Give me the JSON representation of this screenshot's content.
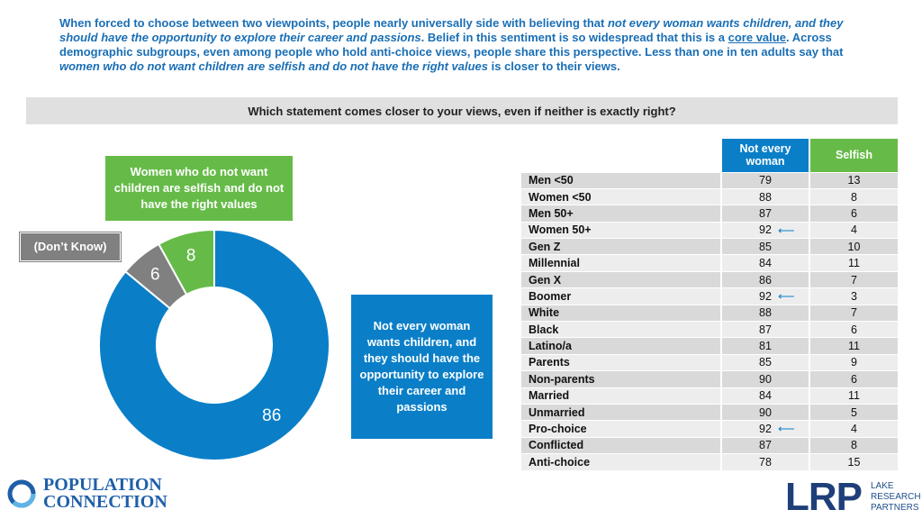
{
  "intro": {
    "part1": "When forced to choose between two viewpoints, people nearly universally side with believing that ",
    "italic1": "not every woman wants children, and they should have the opportunity to explore their career and passions",
    "part2": ". Belief in this sentiment is so widespread that this is a ",
    "underlined": "core value",
    "part3": ". Across demographic subgroups, even among people who hold anti-choice views, people share this perspective. Less than one in ten adults say that ",
    "italic2": "women who do not want children are selfish and do not have the right values",
    "part4": " is closer to their views."
  },
  "question": "Which statement comes closer to your views, even if neither is exactly right?",
  "callouts": {
    "selfish": "Women who do not want children are selfish and do not have the right values",
    "dont_know": "(Don’t Know)",
    "not_every": "Not every woman wants children, and they should have the opportunity to explore their career and passions"
  },
  "colors": {
    "blue": "#0a7fc8",
    "green": "#66bb48",
    "gray": "#808080"
  },
  "chart_data": [
    {
      "type": "pie",
      "title": "Which statement comes closer to your views, even if neither is exactly right?",
      "slices": [
        {
          "name": "Not every woman wants children, and they should have the opportunity to explore their career and passions",
          "value": 86,
          "color": "#0a7fc8"
        },
        {
          "name": "(Don’t Know)",
          "value": 6,
          "color": "#808080"
        },
        {
          "name": "Women who do not want children are selfish and do not have the right values",
          "value": 8,
          "color": "#66bb48"
        }
      ]
    },
    {
      "type": "table",
      "columns": [
        "",
        "Not every woman",
        "Selfish"
      ],
      "rows": [
        {
          "group": "Men <50",
          "not_every": 79,
          "selfish": 13,
          "arrow": false
        },
        {
          "group": "Women <50",
          "not_every": 88,
          "selfish": 8,
          "arrow": false
        },
        {
          "group": "Men 50+",
          "not_every": 87,
          "selfish": 6,
          "arrow": false
        },
        {
          "group": "Women 50+",
          "not_every": 92,
          "selfish": 4,
          "arrow": true
        },
        {
          "group": "Gen Z",
          "not_every": 85,
          "selfish": 10,
          "arrow": false
        },
        {
          "group": "Millennial",
          "not_every": 84,
          "selfish": 11,
          "arrow": false
        },
        {
          "group": "Gen X",
          "not_every": 86,
          "selfish": 7,
          "arrow": false
        },
        {
          "group": "Boomer",
          "not_every": 92,
          "selfish": 3,
          "arrow": true
        },
        {
          "group": "White",
          "not_every": 88,
          "selfish": 7,
          "arrow": false
        },
        {
          "group": "Black",
          "not_every": 87,
          "selfish": 6,
          "arrow": false
        },
        {
          "group": "Latino/a",
          "not_every": 81,
          "selfish": 11,
          "arrow": false
        },
        {
          "group": "Parents",
          "not_every": 85,
          "selfish": 9,
          "arrow": false
        },
        {
          "group": "Non-parents",
          "not_every": 90,
          "selfish": 6,
          "arrow": false
        },
        {
          "group": "Married",
          "not_every": 84,
          "selfish": 11,
          "arrow": false
        },
        {
          "group": "Unmarried",
          "not_every": 90,
          "selfish": 5,
          "arrow": false
        },
        {
          "group": "Pro-choice",
          "not_every": 92,
          "selfish": 4,
          "arrow": true
        },
        {
          "group": "Conflicted",
          "not_every": 87,
          "selfish": 8,
          "arrow": false
        },
        {
          "group": "Anti-choice",
          "not_every": 78,
          "selfish": 15,
          "arrow": false
        }
      ]
    }
  ],
  "table_headers": {
    "not_every": "Not every woman",
    "selfish": "Selfish"
  },
  "logos": {
    "left_line1": "POPULATION",
    "left_line2": "CONNECTION",
    "right_big": "LRP",
    "right_small1": "LAKE",
    "right_small2": "RESEARCH",
    "right_small3": "PARTNERS"
  }
}
